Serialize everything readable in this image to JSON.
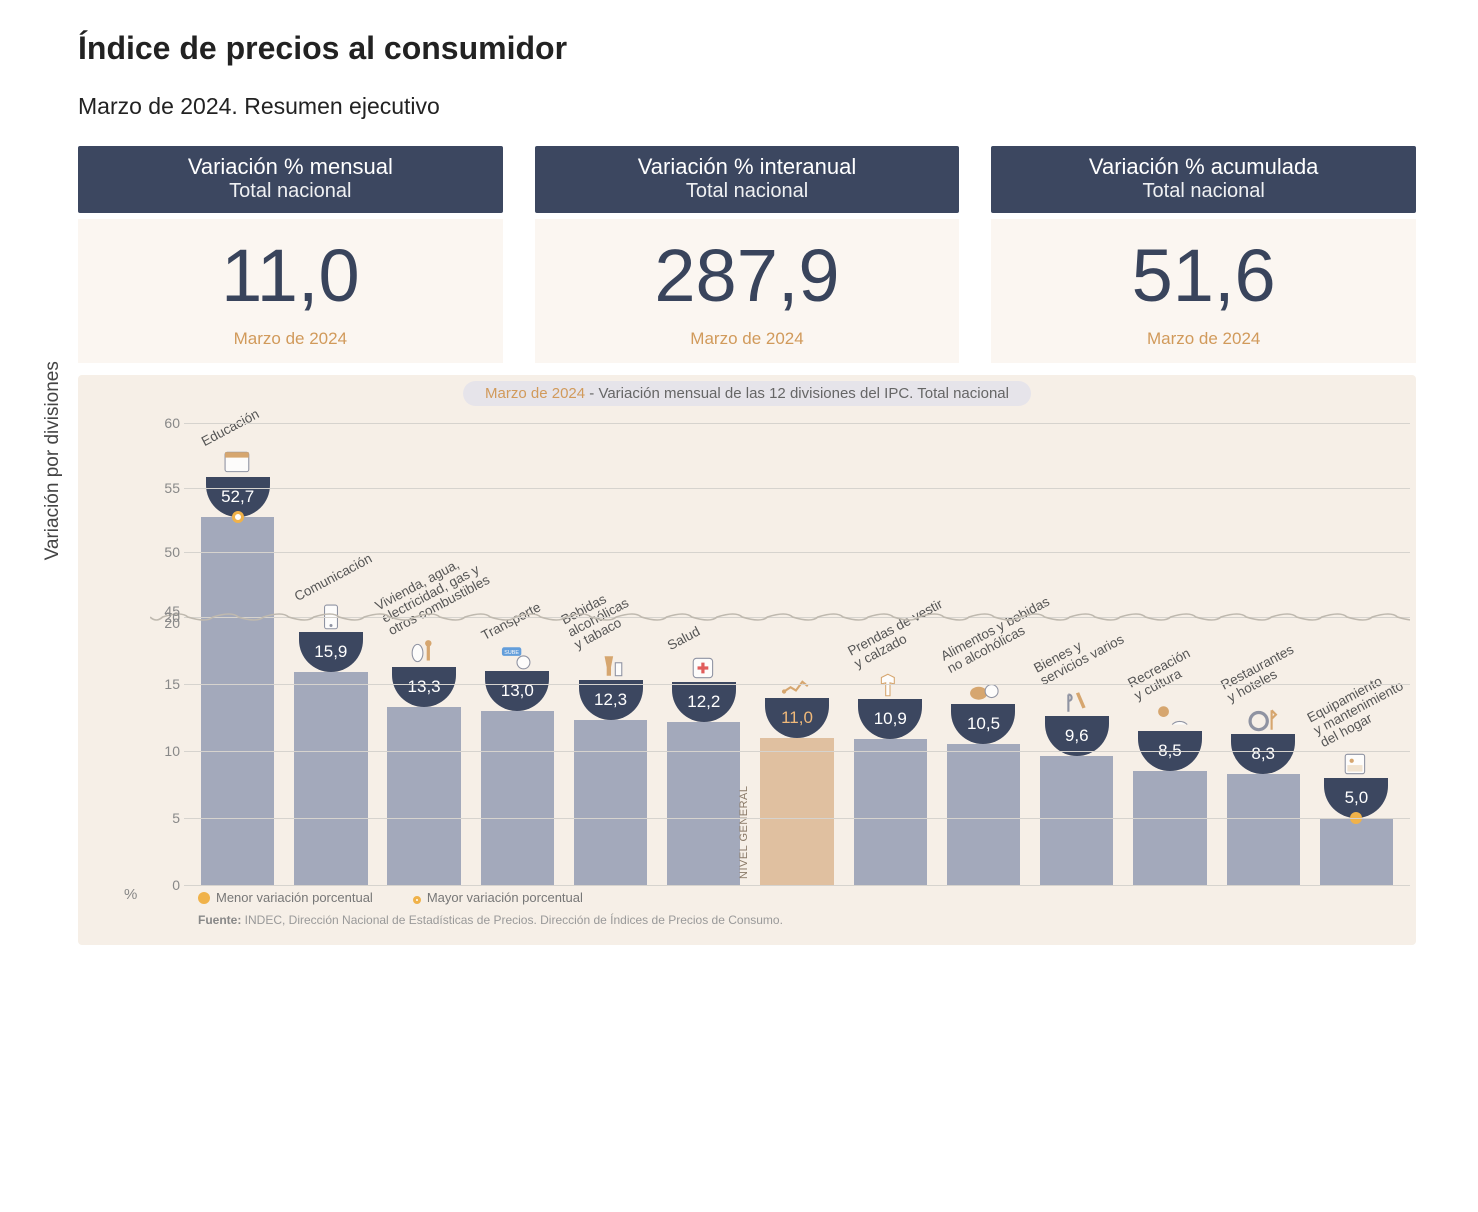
{
  "title": "Índice de precios al consumidor",
  "subtitle": "Marzo de 2024. Resumen ejecutivo",
  "period_label": "Marzo de 2024",
  "cards": [
    {
      "line1": "Variación % mensual",
      "line2": "Total nacional",
      "value": "11,0",
      "sub": "Marzo de 2024"
    },
    {
      "line1": "Variación % interanual",
      "line2": "Total nacional",
      "value": "287,9",
      "sub": "Marzo de 2024"
    },
    {
      "line1": "Variación % acumulada",
      "line2": "Total nacional",
      "value": "51,6",
      "sub": "Marzo de 2024"
    }
  ],
  "chart": {
    "title_prefix": "Marzo de 2024",
    "title_rest": " - Variación mensual de las 12 divisiones del IPC. Total nacional",
    "y_label": "Variación por divisiones",
    "pct_symbol": "%",
    "type": "bar",
    "background_color": "#f6efe7",
    "bar_color": "#a3a9bb",
    "general_bar_color": "#e0c0a0",
    "pocket_color": "#3c4760",
    "grid_color": "#d6d3ce",
    "accent_color": "#d19a5b",
    "label_rotation_deg": -28,
    "value_fontsize": 17,
    "category_fontsize": 13.5,
    "axis_break": {
      "low_max": 20,
      "high_min": 45
    },
    "y_ticks_low": [
      0,
      5,
      10,
      15,
      20
    ],
    "y_ticks_high": [
      45,
      50,
      55,
      60
    ],
    "series": [
      {
        "category": "Educación",
        "value": 52.7,
        "label": "52,7",
        "marker": "max",
        "icon": "education-icon"
      },
      {
        "category": "Comunicación",
        "value": 15.9,
        "label": "15,9",
        "icon": "communication-icon"
      },
      {
        "category": "Vivienda, agua,\nelectricidad, gas y\notros combustibles",
        "value": 13.3,
        "label": "13,3",
        "icon": "housing-icon"
      },
      {
        "category": "Transporte",
        "value": 13.0,
        "label": "13,0",
        "icon": "transport-icon"
      },
      {
        "category": "Bebidas\nalcohólicas\ny tabaco",
        "value": 12.3,
        "label": "12,3",
        "icon": "alcohol-icon"
      },
      {
        "category": "Salud",
        "value": 12.2,
        "label": "12,2",
        "icon": "health-icon"
      },
      {
        "category": "",
        "value": 11.0,
        "label": "11,0",
        "is_general": true,
        "general_label": "NIVEL\nGENERAL",
        "icon": "general-icon"
      },
      {
        "category": "Prendas de vestir\ny calzado",
        "value": 10.9,
        "label": "10,9",
        "icon": "clothing-icon"
      },
      {
        "category": "Alimentos y bebidas\nno alcohólicas",
        "value": 10.5,
        "label": "10,5",
        "icon": "food-icon"
      },
      {
        "category": "Bienes y\nservicios varios",
        "value": 9.6,
        "label": "9,6",
        "icon": "misc-icon"
      },
      {
        "category": "Recreación\ny cultura",
        "value": 8.5,
        "label": "8,5",
        "icon": "recreation-icon"
      },
      {
        "category": "Restaurantes\ny hoteles",
        "value": 8.3,
        "label": "8,3",
        "icon": "restaurants-icon"
      },
      {
        "category": "Equipamiento\ny mantenimiento\ndel hogar",
        "value": 5.0,
        "label": "5,0",
        "marker": "min",
        "icon": "home-equip-icon"
      }
    ],
    "legend": {
      "min": "Menor variación porcentual",
      "max": "Mayor variación porcentual"
    },
    "source_label": "Fuente:",
    "source_text": " INDEC, Dirección Nacional de Estadísticas de Precios. Dirección de Índices de Precios de Consumo."
  }
}
